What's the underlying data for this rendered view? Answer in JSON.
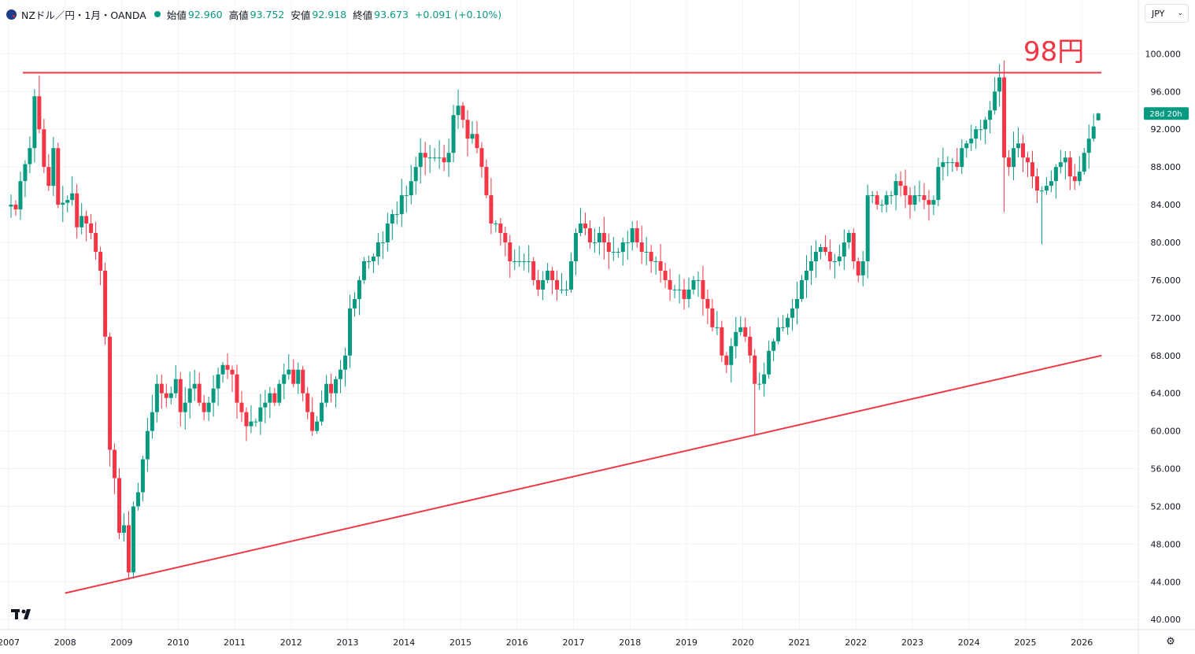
{
  "header": {
    "symbol": "NZドル／円・1月・OANDA",
    "open_label": "始値",
    "open": "92.960",
    "high_label": "高値",
    "high": "93.752",
    "low_label": "安値",
    "low": "92.918",
    "close_label": "終値",
    "close": "93.673",
    "change": "+0.091 (+0.10%)"
  },
  "currency": "JPY",
  "price_badge": "28d 20h",
  "annotation": "98円",
  "colors": {
    "up": "#089981",
    "down": "#f23645",
    "line": "#f23645",
    "grid": "#f0f3fa",
    "text": "#131722"
  },
  "chart_data": {
    "type": "candlestick",
    "interval": "1M",
    "ylim": [
      40,
      100
    ],
    "y_ticks": [
      "40.000",
      "44.000",
      "48.000",
      "52.000",
      "56.000",
      "60.000",
      "64.000",
      "68.000",
      "72.000",
      "76.000",
      "80.000",
      "84.000",
      "88.000",
      "92.000",
      "96.000",
      "100.000"
    ],
    "x_ticks": [
      "2007",
      "2008",
      "2009",
      "2010",
      "2011",
      "2012",
      "2013",
      "2014",
      "2015",
      "2016",
      "2017",
      "2018",
      "2019",
      "2020",
      "2021",
      "2022",
      "2023",
      "2024",
      "2025",
      "2026"
    ],
    "annual_closes": {
      "2007": [
        84,
        83.5,
        86.5,
        88.3,
        90,
        95.5,
        92,
        88,
        86,
        90,
        84,
        84.2
      ],
      "2008": [
        84.5,
        85.2,
        81.6,
        82.8,
        82,
        81,
        79,
        77,
        70,
        58,
        55,
        49.2
      ],
      "2009": [
        50,
        45,
        52,
        53.5,
        57,
        60,
        62,
        65,
        64,
        63.5,
        64,
        65.5
      ],
      "2010": [
        62,
        63,
        64.5,
        65,
        63,
        62,
        63,
        64.5,
        66,
        67,
        66.5,
        66
      ],
      "2011": [
        63,
        62,
        60.5,
        61,
        61,
        62.5,
        63,
        64,
        63,
        65,
        66,
        66.5
      ],
      "2012": [
        65,
        66.5,
        64,
        62,
        60,
        61,
        63,
        65,
        64,
        65.5,
        66.5,
        68
      ],
      "2013": [
        73,
        74,
        76,
        78,
        78,
        78.5,
        80,
        80,
        82,
        83,
        83,
        85
      ],
      "2014": [
        85,
        86.5,
        88,
        89.5,
        89,
        89,
        89,
        89,
        88.5,
        89.5,
        93.5,
        94.5
      ],
      "2015": [
        93,
        91,
        91.5,
        90,
        88,
        85,
        82,
        82,
        81,
        80,
        78,
        78
      ],
      "2016": [
        78,
        78,
        78,
        76,
        75,
        76,
        77,
        76,
        75,
        75,
        75,
        78
      ],
      "2017": [
        81,
        82,
        81.5,
        80,
        80,
        81,
        80,
        79,
        79,
        79,
        80,
        80
      ],
      "2018": [
        81.5,
        80,
        79,
        79,
        78,
        78,
        77,
        76,
        75,
        75,
        75,
        74
      ],
      "2019": [
        75,
        76,
        76,
        74,
        73,
        71,
        71,
        68,
        67,
        69,
        70.5,
        71
      ],
      "2020": [
        70,
        68,
        65,
        65,
        66,
        68.5,
        69.5,
        71,
        71,
        72,
        73,
        74
      ],
      "2021": [
        76,
        77,
        78,
        79,
        79.5,
        79,
        78,
        78,
        78.5,
        80,
        81,
        78
      ],
      "2022": [
        76.5,
        78,
        85,
        85,
        84,
        84,
        85,
        85,
        86.5,
        86,
        85,
        84
      ],
      "2023": [
        85,
        85,
        84.5,
        84,
        84.5,
        88,
        88.5,
        88.5,
        88.5,
        88,
        90,
        90.5
      ],
      "2024": [
        91,
        92,
        92,
        93,
        94,
        96,
        97.5,
        89,
        88,
        90,
        90.5,
        89
      ],
      "2025": [
        88.5,
        87,
        85.5,
        85.5,
        86,
        86.5,
        88,
        88.5,
        89,
        87,
        86.5,
        87.5
      ],
      "2026": [
        89.5,
        91,
        92.3,
        93.67
      ]
    },
    "lines": [
      {
        "kind": "horizontal",
        "y": 98,
        "from": "2007-01",
        "to": "2026-04"
      },
      {
        "kind": "trendline",
        "from": [
          "2008-01",
          42.8
        ],
        "to": [
          "2026-04",
          68
        ]
      }
    ]
  }
}
